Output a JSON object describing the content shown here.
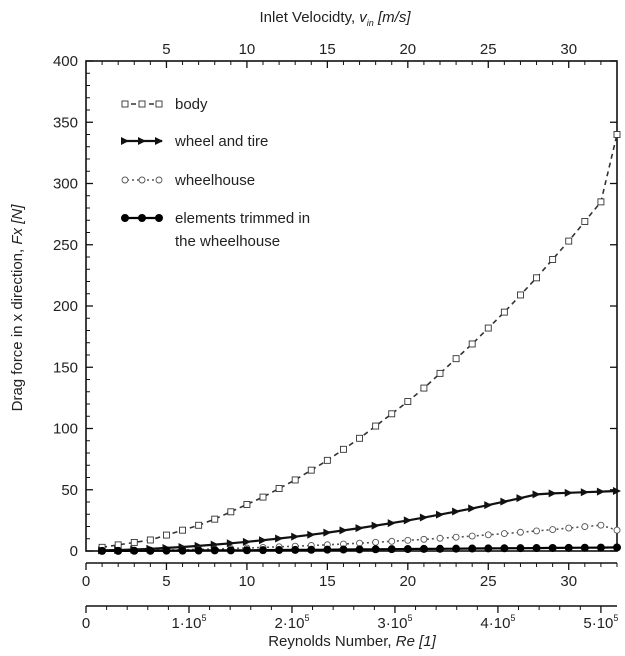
{
  "chart_data": {
    "type": "line",
    "top_axis": {
      "label": "Inlet Velocidty, ",
      "label_symbol": "v",
      "label_subscript": "in",
      "label_unit": "[m/s]",
      "range": [
        0,
        33
      ],
      "ticks": [
        "5",
        "10",
        "15",
        "20",
        "25",
        "30"
      ]
    },
    "ylabel": "Drag force in x direction, ",
    "ylabel_symbol": "Fx",
    "ylabel_unit": "[N]",
    "ylim": [
      0,
      400
    ],
    "y_ticks": [
      "0",
      "50",
      "100",
      "150",
      "200",
      "250",
      "300",
      "350",
      "400"
    ],
    "bottom_velocity_axis": {
      "range": [
        0,
        33
      ],
      "ticks": [
        "0",
        "5",
        "10",
        "15",
        "20",
        "25",
        "30"
      ]
    },
    "reynolds_axis": {
      "label": "Reynolds Number, ",
      "label_symbol": "Re",
      "label_unit": "[1]",
      "ticks": [
        "0",
        "1·10",
        "2·10",
        "3·10",
        "4·10",
        "5·10"
      ],
      "tick_exponent": "5",
      "tick_velocities": [
        0,
        6.4,
        12.8,
        19.2,
        25.6,
        32.0
      ]
    },
    "x": [
      1,
      2,
      3,
      4,
      5,
      6,
      7,
      8,
      9,
      10,
      11,
      12,
      13,
      14,
      15,
      16,
      17,
      18,
      19,
      20,
      21,
      22,
      23,
      24,
      25,
      26,
      27,
      28,
      29,
      30,
      31,
      32,
      33
    ],
    "series": [
      {
        "name": "body",
        "values": [
          3,
          5,
          7,
          9,
          13,
          17,
          21,
          26,
          32,
          38,
          44,
          51,
          58,
          66,
          74,
          83,
          92,
          102,
          112,
          122,
          133,
          145,
          157,
          169,
          182,
          195,
          209,
          223,
          238,
          253,
          269,
          285,
          340
        ],
        "style": "dashed",
        "marker": "open-square",
        "color": "#333333"
      },
      {
        "name": "wheel and tire",
        "values": [
          0.5,
          0.8,
          1.2,
          1.8,
          2.5,
          3.3,
          4.2,
          5.2,
          6.3,
          7.5,
          8.8,
          10.2,
          11.7,
          13.3,
          15.0,
          16.8,
          18.7,
          20.7,
          22.8,
          25.0,
          27.3,
          29.7,
          32.2,
          34.8,
          37.5,
          40.3,
          43.2,
          46.2,
          47,
          47.5,
          48,
          48.5,
          49
        ],
        "style": "solid",
        "marker": "filled-triangle",
        "color": "#111111"
      },
      {
        "name": "wheelhouse",
        "values": [
          0.1,
          0.2,
          0.3,
          0.5,
          0.7,
          1.0,
          1.3,
          1.6,
          2.0,
          2.4,
          2.9,
          3.4,
          3.9,
          4.5,
          5.1,
          5.7,
          6.4,
          7.1,
          7.9,
          8.7,
          9.5,
          10.4,
          11.3,
          12.2,
          13.2,
          14.2,
          15.3,
          16.4,
          17.5,
          18.7,
          19.9,
          21.1,
          17
        ],
        "style": "dotted",
        "marker": "open-circle",
        "color": "#555555"
      },
      {
        "name": "elements trimmed in\nthe wheelhouse",
        "values": [
          0.1,
          0.1,
          0.2,
          0.2,
          0.3,
          0.3,
          0.4,
          0.5,
          0.5,
          0.6,
          0.7,
          0.8,
          0.9,
          1.0,
          1.1,
          1.2,
          1.3,
          1.4,
          1.5,
          1.6,
          1.7,
          1.8,
          1.9,
          2.0,
          2.1,
          2.2,
          2.3,
          2.4,
          2.5,
          2.6,
          2.7,
          2.8,
          2.9
        ],
        "style": "solid",
        "marker": "filled-circle",
        "color": "#000000"
      }
    ],
    "legend": {
      "position": "top-left",
      "entries": [
        "body",
        "wheel and tire",
        "wheelhouse",
        "elements trimmed in",
        "the wheelhouse"
      ]
    },
    "grid": false
  }
}
